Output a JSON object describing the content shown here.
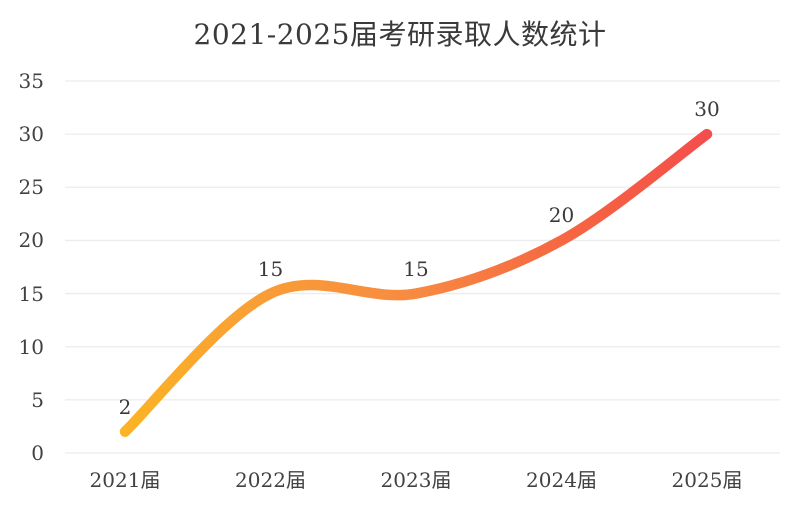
{
  "chart_data": {
    "type": "line",
    "title": "2021-2025届考研录取人数统计",
    "categories": [
      "2021届",
      "2022届",
      "2023届",
      "2024届",
      "2025届"
    ],
    "values": [
      2,
      15,
      15,
      20,
      30
    ],
    "data_labels": [
      "2",
      "15",
      "15",
      "20",
      "30"
    ],
    "yticks": [
      0,
      5,
      10,
      15,
      20,
      25,
      30,
      35
    ],
    "ylim": [
      0,
      35
    ],
    "xlabel": "",
    "ylabel": "",
    "grid": "horizontal-only",
    "legend": "none",
    "line_style": "smooth-spline, thick, round caps",
    "line_gradient": [
      "#FCB324",
      "#F99C37",
      "#F78A41",
      "#F66342",
      "#F44E4C"
    ],
    "grid_color": "#ECECEC",
    "text_color": "#3E3E3E",
    "background_color": "#FFFFFF"
  }
}
